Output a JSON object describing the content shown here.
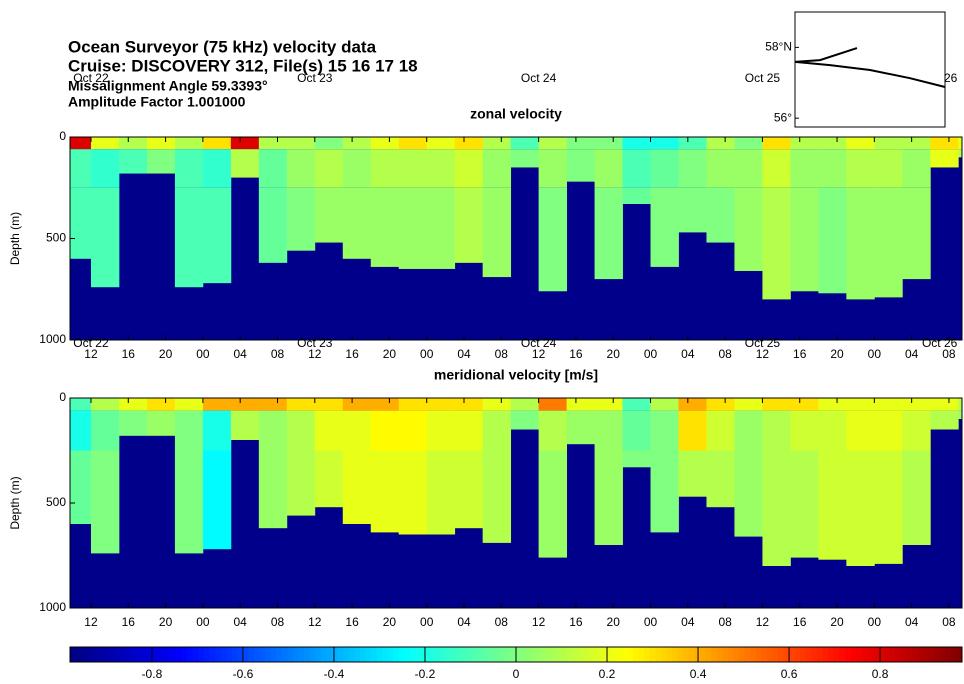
{
  "header": {
    "title": "Ocean Surveyor (75 kHz) velocity data",
    "cruise": "Cruise:  DISCOVERY 312, File(s) 15  16  17  18",
    "misalignment": "Missalignment Angle 59.3393°",
    "amplitude": "Amplitude Factor 1.001000"
  },
  "chart_data": [
    {
      "type": "heatmap",
      "title": "zonal velocity",
      "ylabel": "Depth (m)",
      "xlim": [
        9.75,
        105.4
      ],
      "ylim": [
        1000,
        0
      ],
      "yticks": [
        0,
        500,
        1000
      ],
      "xticks": [
        12,
        16,
        20,
        {
          "value": 24,
          "label": "00"
        },
        {
          "value": 28,
          "label": "04"
        },
        {
          "value": 32,
          "label": "08"
        },
        {
          "value": 36,
          "label": "12"
        },
        {
          "value": 40,
          "label": "16"
        },
        {
          "value": 44,
          "label": "20"
        },
        {
          "value": 48,
          "label": "00"
        },
        {
          "value": 52,
          "label": "04"
        },
        {
          "value": 56,
          "label": "08"
        },
        {
          "value": 60,
          "label": "12"
        },
        {
          "value": 64,
          "label": "16"
        },
        {
          "value": 68,
          "label": "20"
        },
        {
          "value": 72,
          "label": "00"
        },
        {
          "value": 76,
          "label": "04"
        },
        {
          "value": 80,
          "label": "08"
        },
        {
          "value": 84,
          "label": "12"
        },
        {
          "value": 88,
          "label": "16"
        },
        {
          "value": 92,
          "label": "20"
        },
        {
          "value": 96,
          "label": "00"
        },
        {
          "value": 100,
          "label": "04"
        },
        {
          "value": 104,
          "label": "08"
        }
      ],
      "date_ticks": [
        {
          "value": 12,
          "label": "Oct 22"
        },
        {
          "value": 36,
          "label": "Oct 23"
        },
        {
          "value": 60,
          "label": "Oct 24"
        },
        {
          "value": 84,
          "label": "Oct 25"
        },
        {
          "value": 103,
          "label": "Oct 26"
        }
      ],
      "clim": [
        -0.98,
        0.98
      ],
      "colormap": "jet",
      "mask_color": "#00008b",
      "xbins": [
        9.75,
        12,
        15,
        18,
        21,
        24,
        27,
        30,
        33,
        36,
        39,
        42,
        45,
        48,
        51,
        54,
        57,
        60,
        63,
        66,
        69,
        72,
        75,
        78,
        81,
        84,
        87,
        90,
        93,
        96,
        99,
        102,
        105,
        105.4
      ],
      "ybins": [
        0,
        60,
        250
      ],
      "bottom": [
        600,
        740,
        180,
        180,
        740,
        720,
        200,
        620,
        560,
        520,
        600,
        640,
        650,
        650,
        620,
        690,
        150,
        760,
        220,
        700,
        330,
        640,
        470,
        520,
        660,
        800,
        760,
        770,
        800,
        790,
        700,
        150,
        100
      ],
      "z": [
        [
          0.8,
          0.2,
          0.1,
          0.2,
          0.1,
          0.3,
          0.8,
          0.1,
          0.1,
          0.0,
          0.1,
          0.2,
          0.3,
          0.2,
          0.3,
          0.1,
          -0.1,
          0.1,
          0.0,
          0.0,
          -0.2,
          -0.2,
          -0.1,
          0.1,
          0.0,
          0.3,
          0.1,
          0.1,
          0.2,
          0.1,
          0.1,
          0.3,
          0.2
        ],
        [
          -0.1,
          -0.15,
          -0.1,
          0,
          -0.1,
          -0.15,
          0.1,
          -0.05,
          0.05,
          0.1,
          0.05,
          0.1,
          0.1,
          0.1,
          0.15,
          0.05,
          0,
          0.05,
          0,
          0.05,
          -0.1,
          -0.05,
          0,
          0.05,
          0.05,
          0.15,
          0.05,
          0.05,
          0.1,
          0.1,
          0.05,
          0.2,
          0.1
        ],
        [
          -0.1,
          -0.1,
          -0.05,
          0,
          -0.1,
          -0.1,
          0,
          -0.05,
          0,
          0.05,
          0.05,
          0.05,
          0.05,
          0.05,
          0.1,
          0.05,
          0,
          0,
          0,
          0,
          -0.05,
          0,
          0,
          0,
          0.05,
          0.1,
          0.05,
          0,
          0.05,
          0.05,
          0.05,
          0.1,
          0.1
        ]
      ]
    },
    {
      "type": "heatmap",
      "title": "meridional velocity [m/s]",
      "ylabel": "Depth (m)",
      "xlim": [
        9.75,
        105.4
      ],
      "ylim": [
        1000,
        0
      ],
      "yticks": [
        0,
        500,
        1000
      ],
      "xticks": [
        12,
        16,
        20,
        {
          "value": 24,
          "label": "00"
        },
        {
          "value": 28,
          "label": "04"
        },
        {
          "value": 32,
          "label": "08"
        },
        {
          "value": 36,
          "label": "12"
        },
        {
          "value": 40,
          "label": "16"
        },
        {
          "value": 44,
          "label": "20"
        },
        {
          "value": 48,
          "label": "00"
        },
        {
          "value": 52,
          "label": "04"
        },
        {
          "value": 56,
          "label": "08"
        },
        {
          "value": 60,
          "label": "12"
        },
        {
          "value": 64,
          "label": "16"
        },
        {
          "value": 68,
          "label": "20"
        },
        {
          "value": 72,
          "label": "00"
        },
        {
          "value": 76,
          "label": "04"
        },
        {
          "value": 80,
          "label": "08"
        },
        {
          "value": 84,
          "label": "12"
        },
        {
          "value": 88,
          "label": "16"
        },
        {
          "value": 92,
          "label": "20"
        },
        {
          "value": 96,
          "label": "00"
        },
        {
          "value": 100,
          "label": "04"
        },
        {
          "value": 104,
          "label": "08"
        }
      ],
      "clim": [
        -0.98,
        0.98
      ],
      "colormap": "jet",
      "mask_color": "#00008b",
      "xbins": [
        9.75,
        12,
        15,
        18,
        21,
        24,
        27,
        30,
        33,
        36,
        39,
        42,
        45,
        48,
        51,
        54,
        57,
        60,
        63,
        66,
        69,
        72,
        75,
        78,
        81,
        84,
        87,
        90,
        93,
        96,
        99,
        102,
        105,
        105.4
      ],
      "ybins": [
        0,
        60,
        250
      ],
      "bottom": [
        600,
        740,
        180,
        180,
        740,
        720,
        200,
        620,
        560,
        520,
        600,
        640,
        650,
        650,
        620,
        690,
        150,
        760,
        220,
        700,
        330,
        640,
        470,
        520,
        660,
        800,
        760,
        770,
        800,
        790,
        700,
        150,
        100
      ],
      "z": [
        [
          -0.1,
          0.1,
          0.2,
          0.3,
          0.2,
          0.4,
          0.4,
          0.4,
          0.3,
          0.3,
          0.4,
          0.4,
          0.3,
          0.3,
          0.3,
          0.2,
          0.1,
          0.5,
          0.2,
          0.2,
          -0.1,
          0.1,
          0.4,
          0.3,
          0.2,
          0.3,
          0.3,
          0.2,
          0.2,
          0.2,
          0.2,
          0.2,
          0.1
        ],
        [
          -0.2,
          -0.05,
          0,
          0.05,
          0,
          -0.2,
          0.1,
          0.05,
          0.1,
          0.2,
          0.2,
          0.25,
          0.25,
          0.2,
          0.2,
          0.1,
          0,
          0.1,
          0.05,
          0.05,
          -0.05,
          0,
          0.3,
          0.15,
          0.05,
          0.1,
          0.15,
          0.15,
          0.2,
          0.2,
          0.15,
          0.1,
          0.05
        ],
        [
          -0.05,
          0,
          0,
          0,
          0,
          -0.25,
          0.05,
          0.05,
          0.1,
          0.15,
          0.2,
          0.2,
          0.2,
          0.15,
          0.15,
          0.1,
          0,
          0.05,
          0,
          0.05,
          0,
          0,
          0.1,
          0.1,
          0.05,
          0.1,
          0.1,
          0.15,
          0.15,
          0.15,
          0.1,
          0.1,
          0.05
        ]
      ]
    },
    {
      "type": "colorbar",
      "colormap": "jet",
      "xlim": [
        -0.98,
        0.98
      ],
      "xticks": [
        -0.8,
        -0.6,
        -0.4,
        -0.2,
        0,
        0.2,
        0.4,
        0.6,
        0.8
      ]
    },
    {
      "type": "map",
      "xlim": [
        -30,
        -5
      ],
      "ylim": [
        55.75,
        59
      ],
      "yticks": [
        {
          "value": 58,
          "label": "58°N"
        },
        {
          "value": 56,
          "label": "56°"
        }
      ],
      "color": "#000000",
      "track": {
        "lon": [
          -19.67,
          -25.83,
          -30,
          -24.17,
          -17.5,
          -10.83,
          -5
        ],
        "lat": [
          57.98,
          57.64,
          57.59,
          57.5,
          57.36,
          57.13,
          56.88
        ]
      }
    }
  ]
}
